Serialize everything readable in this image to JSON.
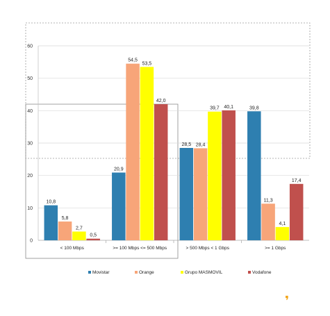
{
  "chart_data": {
    "type": "bar",
    "categories": [
      "< 100 Mbps",
      ">= 100 Mbps <= 500 Mbps",
      "> 500 Mbps < 1 Gbps",
      ">= 1 Gbps"
    ],
    "series": [
      {
        "name": "Movistar",
        "color": "#2e7fb0",
        "values": [
          10.8,
          20.9,
          28.5,
          39.8
        ],
        "labels": [
          "10,8",
          "20,9",
          "28,5",
          "39,8"
        ]
      },
      {
        "name": "Orange",
        "color": "#f7a579",
        "values": [
          5.8,
          54.5,
          28.4,
          11.3
        ],
        "labels": [
          "5,8",
          "54,5",
          "28,4",
          "11,3"
        ]
      },
      {
        "name": "Grupo MASMOVIL",
        "color": "#ffff00",
        "values": [
          2.7,
          53.5,
          39.7,
          4.1
        ],
        "labels": [
          "2,7",
          "53,5",
          "39,7",
          "4,1"
        ]
      },
      {
        "name": "Vodafone",
        "color": "#c0504d",
        "values": [
          0.5,
          42.0,
          40.1,
          17.4
        ],
        "labels": [
          "0,5",
          "42,0",
          "40,1",
          "17,4"
        ]
      }
    ],
    "yticks": [
      "0",
      "10",
      "20",
      "30",
      "40",
      "50",
      "60"
    ],
    "ylim": [
      0,
      60
    ],
    "grid": true,
    "legend": "bottom"
  },
  "accent": {
    "glyph": "❜",
    "color": "#f2a51a"
  }
}
